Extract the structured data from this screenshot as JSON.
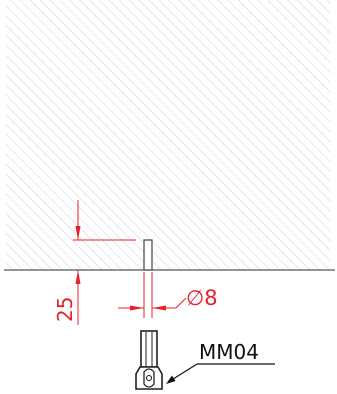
{
  "drawing": {
    "dimension_height": "25",
    "dimension_diameter": "∅8",
    "part_label": "MM04"
  },
  "colors": {
    "hatch": "#c8c8c8",
    "line": "#555555",
    "dimension": "#e8202a",
    "outline": "#222222",
    "background": "#ffffff"
  }
}
